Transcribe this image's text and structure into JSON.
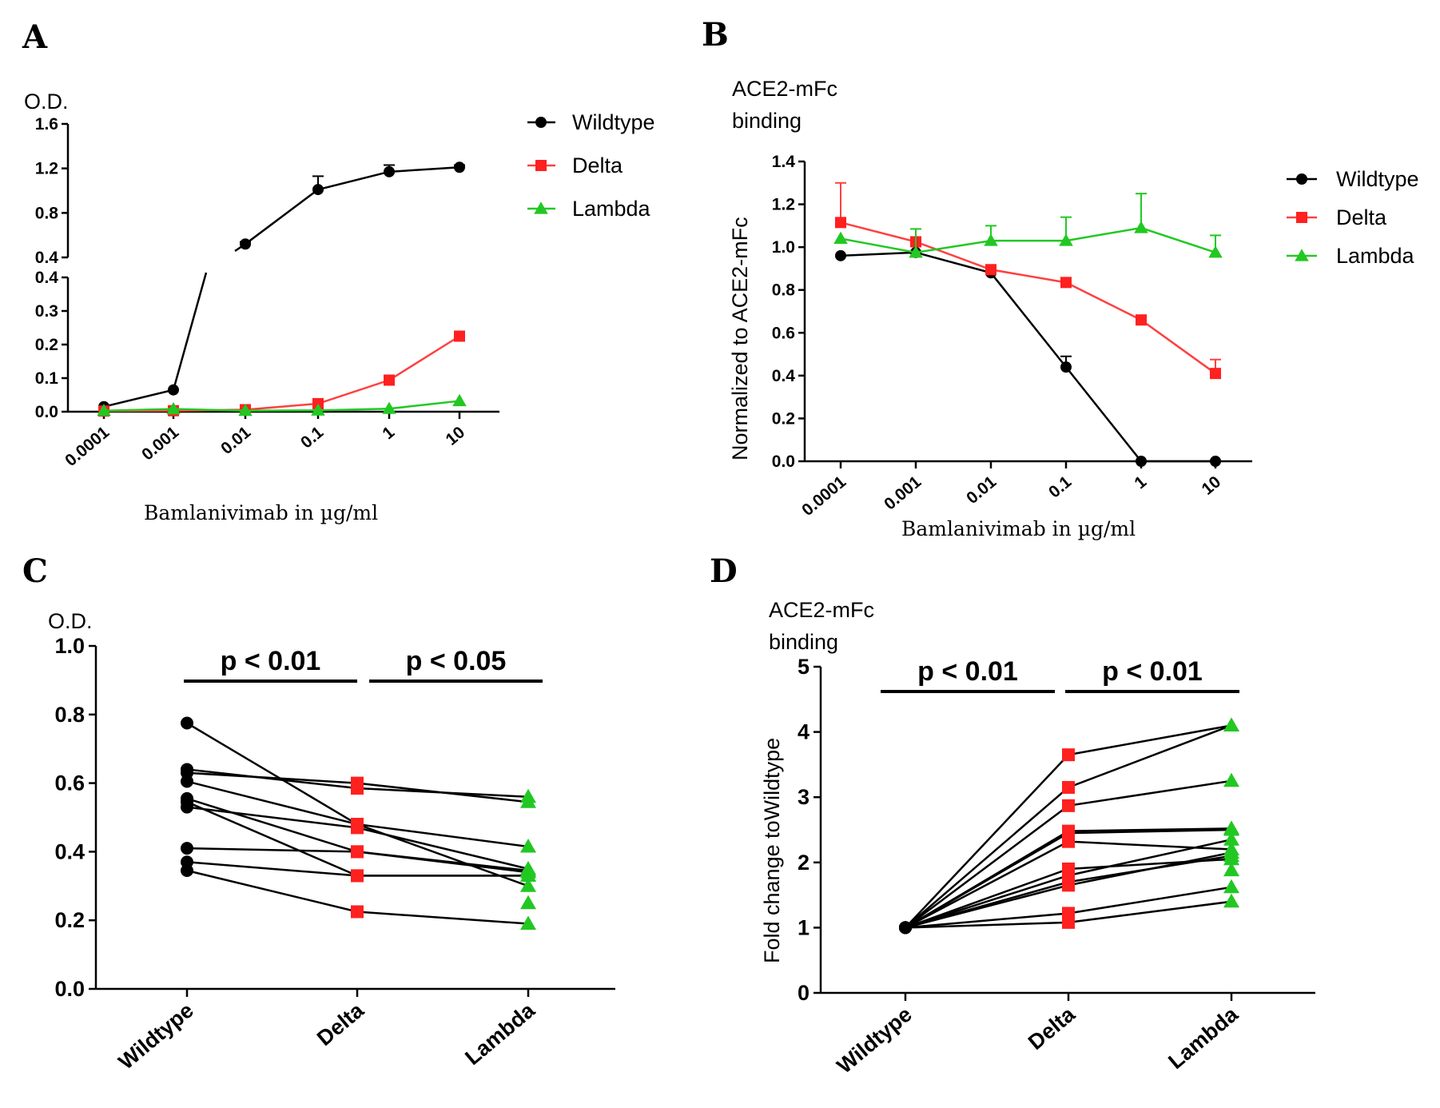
{
  "colors": {
    "wildtype": "#000000",
    "delta": "#ff2020",
    "lambda": "#22c822",
    "delta_line": "#ff4040",
    "lambda_line": "#22c822"
  },
  "chart_data": [
    {
      "panel": "A",
      "type": "line",
      "title": "",
      "ylabel": "O.D.",
      "xlabel": "Bamlanivimab in µg/ml",
      "categories": [
        "0.0001",
        "0.001",
        "0.01",
        "0.1",
        "1",
        "10"
      ],
      "y_axis_break": {
        "lower_range": [
          0,
          0.4
        ],
        "upper_range": [
          0.4,
          1.6
        ]
      },
      "yticks_lower": [
        "0.0",
        "0.1",
        "0.2",
        "0.3",
        "0.4"
      ],
      "yticks_upper": [
        "0.4",
        "0.8",
        "1.2",
        "1.6"
      ],
      "series": [
        {
          "name": "Wildtype",
          "marker": "circle",
          "values": [
            0.015,
            0.065,
            0.52,
            1.01,
            1.17,
            1.21
          ],
          "errors": [
            0,
            0,
            0.02,
            0.12,
            0.06,
            0.02
          ]
        },
        {
          "name": "Delta",
          "marker": "square",
          "values": [
            0.002,
            0.003,
            0.006,
            0.024,
            0.094,
            0.225
          ],
          "errors": [
            0,
            0,
            0,
            0,
            0,
            0
          ]
        },
        {
          "name": "Lambda",
          "marker": "triangle",
          "values": [
            0.003,
            0.008,
            0.003,
            0.004,
            0.009,
            0.032
          ],
          "errors": [
            0,
            0,
            0,
            0,
            0,
            0
          ]
        }
      ],
      "legend": [
        "Wildtype",
        "Delta",
        "Lambda"
      ],
      "legend_position": "top-right"
    },
    {
      "panel": "B",
      "type": "line",
      "title": "ACE2-mFc binding",
      "title_lines": [
        "ACE2-mFc",
        "binding"
      ],
      "ylabel": "Normalized to ACE2-mFc",
      "xlabel": "Bamlanivimab in µg/ml",
      "categories": [
        "0.0001",
        "0.001",
        "0.01",
        "0.1",
        "1",
        "10"
      ],
      "ylim": [
        0,
        1.4
      ],
      "yticks": [
        "0.0",
        "0.2",
        "0.4",
        "0.6",
        "0.8",
        "1.0",
        "1.2",
        "1.4"
      ],
      "series": [
        {
          "name": "Wildtype",
          "marker": "circle",
          "values": [
            0.96,
            0.975,
            0.88,
            0.44,
            0.0,
            0.0
          ],
          "errors": [
            0,
            0,
            0,
            0.05,
            0,
            0
          ]
        },
        {
          "name": "Delta",
          "marker": "square",
          "values": [
            1.115,
            1.025,
            0.895,
            0.835,
            0.66,
            0.41
          ],
          "errors": [
            0.185,
            0,
            0,
            0,
            0,
            0.065
          ]
        },
        {
          "name": "Lambda",
          "marker": "triangle",
          "values": [
            1.04,
            0.975,
            1.03,
            1.03,
            1.09,
            0.975
          ],
          "errors": [
            0,
            0.11,
            0.07,
            0.11,
            0.16,
            0.08
          ]
        }
      ],
      "legend": [
        "Wildtype",
        "Delta",
        "Lambda"
      ],
      "legend_position": "top-right"
    },
    {
      "panel": "C",
      "type": "scatter",
      "title": "",
      "ylabel": "O.D.",
      "categories": [
        "Wildtype",
        "Delta",
        "Lambda"
      ],
      "ylim": [
        0,
        1.0
      ],
      "yticks": [
        "0.0",
        "0.2",
        "0.4",
        "0.6",
        "0.8",
        "1.0"
      ],
      "paired_samples": [
        [
          0.775,
          0.48,
          0.3
        ],
        [
          0.64,
          0.585,
          0.56
        ],
        [
          0.63,
          0.6,
          0.545
        ],
        [
          0.605,
          0.48,
          0.415
        ],
        [
          0.555,
          0.4,
          0.345
        ],
        [
          0.545,
          0.33,
          0.33
        ],
        [
          0.53,
          0.47,
          0.35
        ],
        [
          0.41,
          0.4,
          0.34
        ],
        [
          0.37,
          0.33,
          0.33
        ],
        [
          0.345,
          0.225,
          0.19
        ]
      ],
      "extra_points": {
        "Lambda": [
          0.25
        ]
      },
      "significance": [
        {
          "label": "p < 0.01",
          "from": "Wildtype",
          "to": "Delta"
        },
        {
          "label": "p < 0.05",
          "from": "Delta",
          "to": "Lambda"
        }
      ]
    },
    {
      "panel": "D",
      "type": "scatter",
      "title": "ACE2-mFc binding",
      "title_lines": [
        "ACE2-mFc",
        "binding"
      ],
      "ylabel": "Fold change toWildtype",
      "categories": [
        "Wildtype",
        "Delta",
        "Lambda"
      ],
      "ylim": [
        0,
        5
      ],
      "yticks": [
        "0",
        "1",
        "2",
        "3",
        "4",
        "5"
      ],
      "paired_samples": [
        [
          1,
          3.65,
          4.1
        ],
        [
          1,
          3.15,
          4.1
        ],
        [
          1,
          2.87,
          3.25
        ],
        [
          1,
          2.48,
          2.52
        ],
        [
          1,
          2.45,
          2.5
        ],
        [
          1,
          2.32,
          2.2
        ],
        [
          1,
          1.9,
          2.05
        ],
        [
          1,
          1.8,
          2.35
        ],
        [
          1,
          1.7,
          2.1
        ],
        [
          1,
          1.65,
          2.15
        ],
        [
          1,
          1.22,
          1.62
        ],
        [
          1,
          1.08,
          1.4
        ]
      ],
      "extra_points": {
        "Lambda": [
          1.88
        ]
      },
      "significance": [
        {
          "label": "p < 0.01",
          "from": "Wildtype",
          "to": "Delta"
        },
        {
          "label": "p < 0.01",
          "from": "Delta",
          "to": "Lambda"
        }
      ]
    }
  ]
}
